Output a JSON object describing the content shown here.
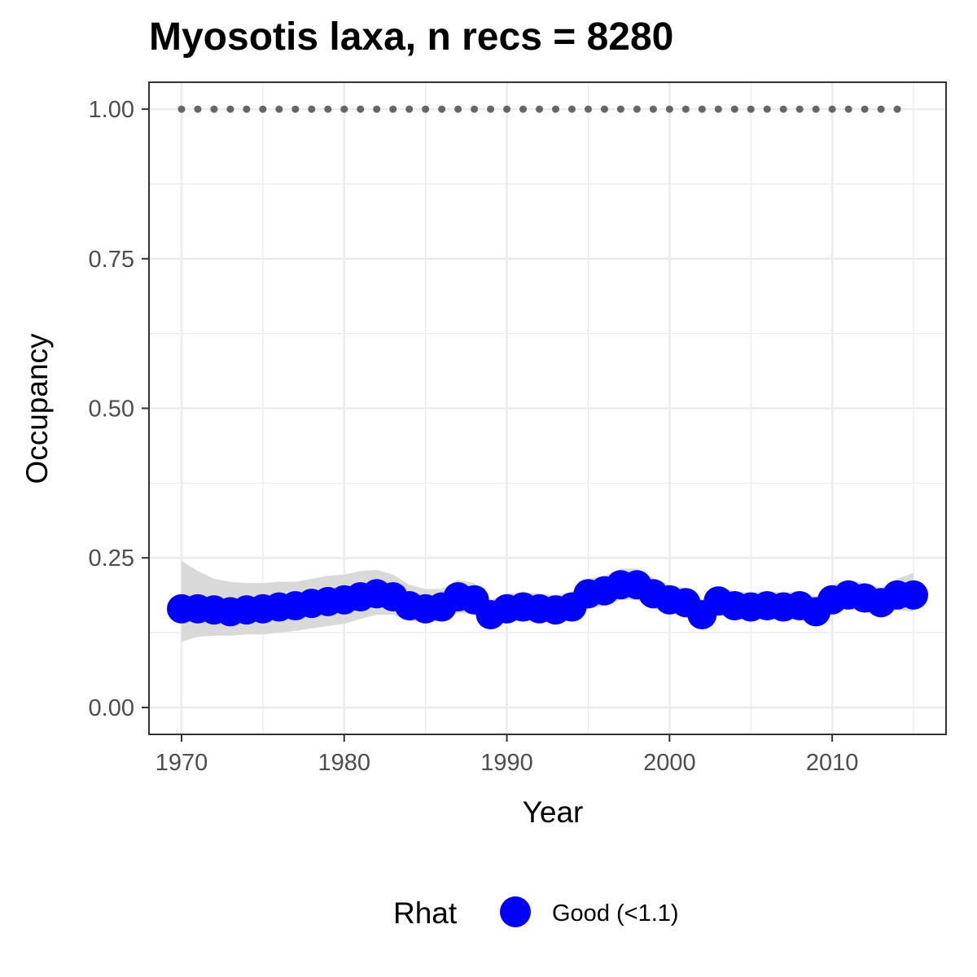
{
  "chart_data": {
    "type": "line",
    "title": "Myosotis laxa, n recs = 8280",
    "xlabel": "Year",
    "ylabel": "Occupancy",
    "xlim": [
      1968,
      2017
    ],
    "ylim": [
      -0.045,
      1.045
    ],
    "x_ticks": [
      1970,
      1980,
      1990,
      2000,
      2010
    ],
    "y_ticks": [
      0.0,
      0.25,
      0.5,
      0.75,
      1.0
    ],
    "y_tick_labels": [
      "0.00",
      "0.25",
      "0.50",
      "0.75",
      "1.00"
    ],
    "grid": true,
    "legend": {
      "title": "Rhat",
      "position": "bottom",
      "entries": [
        {
          "label": "Good (<1.1)",
          "color": "#0000ff"
        }
      ]
    },
    "colors": {
      "points": "#0000ff",
      "ribbon": "#d9d9d9",
      "reference": "#666666",
      "grid": "#ebebeb",
      "border": "#333333"
    },
    "reference_line": {
      "y": 1.0,
      "style": "dotted"
    },
    "series": [
      {
        "x": [
          1970,
          1971,
          1972,
          1973,
          1974,
          1975,
          1976,
          1977,
          1978,
          1979,
          1980,
          1981,
          1982,
          1983,
          1984,
          1985,
          1986,
          1987,
          1988,
          1989,
          1990,
          1991,
          1992,
          1993,
          1994,
          1995,
          1996,
          1997,
          1998,
          1999,
          2000,
          2001,
          2002,
          2003,
          2004,
          2005,
          2006,
          2007,
          2008,
          2009,
          2010,
          2011,
          2012,
          2013,
          2014,
          2015
        ],
        "y": [
          0.165,
          0.165,
          0.163,
          0.16,
          0.163,
          0.165,
          0.168,
          0.17,
          0.174,
          0.177,
          0.18,
          0.185,
          0.19,
          0.185,
          0.17,
          0.165,
          0.168,
          0.185,
          0.18,
          0.155,
          0.165,
          0.168,
          0.165,
          0.163,
          0.168,
          0.19,
          0.195,
          0.205,
          0.205,
          0.19,
          0.18,
          0.175,
          0.155,
          0.178,
          0.17,
          0.168,
          0.17,
          0.168,
          0.17,
          0.16,
          0.18,
          0.188,
          0.183,
          0.175,
          0.188,
          0.188
        ],
        "lower": [
          0.11,
          0.118,
          0.12,
          0.12,
          0.122,
          0.122,
          0.125,
          0.128,
          0.132,
          0.136,
          0.14,
          0.148,
          0.155,
          0.155,
          0.145,
          0.142,
          0.145,
          0.158,
          0.155,
          0.135,
          0.142,
          0.145,
          0.143,
          0.142,
          0.145,
          0.165,
          0.17,
          0.18,
          0.18,
          0.165,
          0.158,
          0.153,
          0.135,
          0.155,
          0.148,
          0.146,
          0.148,
          0.146,
          0.148,
          0.14,
          0.158,
          0.165,
          0.16,
          0.153,
          0.163,
          0.16
        ],
        "upper": [
          0.245,
          0.228,
          0.215,
          0.21,
          0.208,
          0.208,
          0.21,
          0.21,
          0.215,
          0.22,
          0.222,
          0.228,
          0.23,
          0.222,
          0.205,
          0.198,
          0.198,
          0.213,
          0.208,
          0.18,
          0.19,
          0.193,
          0.19,
          0.188,
          0.193,
          0.215,
          0.22,
          0.232,
          0.232,
          0.216,
          0.205,
          0.2,
          0.18,
          0.202,
          0.194,
          0.192,
          0.194,
          0.192,
          0.195,
          0.185,
          0.205,
          0.213,
          0.208,
          0.2,
          0.215,
          0.225
        ]
      }
    ]
  }
}
